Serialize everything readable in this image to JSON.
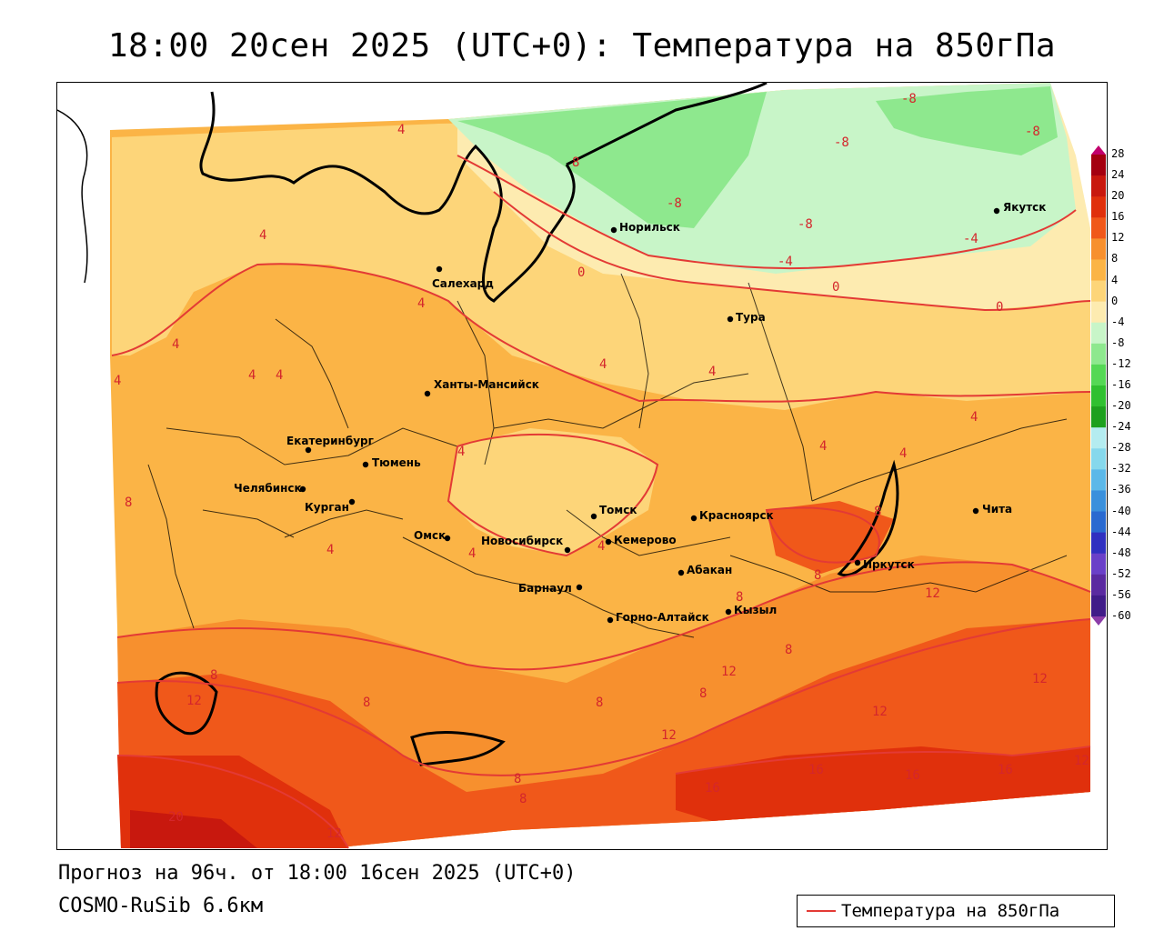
{
  "title": "18:00 20сен 2025 (UTC+0): Температура на 850гПа",
  "footer": {
    "forecast": "Прогноз на 96ч. от 18:00 16сен 2025 (UTC+0)",
    "model": "COSMO-RuSib 6.6км"
  },
  "legend": {
    "label": "Температура на 850гПа",
    "line_color": "#e33a35"
  },
  "colorbar": {
    "ticks": [
      "28",
      "24",
      "20",
      "16",
      "12",
      "8",
      "4",
      "0",
      "-4",
      "-8",
      "-12",
      "-16",
      "-20",
      "-24",
      "-28",
      "-32",
      "-36",
      "-40",
      "-44",
      "-48",
      "-52",
      "-56",
      "-60"
    ],
    "colors": [
      "#c2006d",
      "#a40010",
      "#c8180e",
      "#e0300c",
      "#f0581a",
      "#f7902e",
      "#fbb446",
      "#fdd579",
      "#fdebb0",
      "#c8f5c8",
      "#8ee88e",
      "#55d855",
      "#30c030",
      "#1ea01e",
      "#b4ecf0",
      "#86d8ec",
      "#5cb8e8",
      "#3a90dc",
      "#2a6ad0",
      "#3030c0",
      "#6a40c8",
      "#5a2aa0",
      "#401c88",
      "#8c3ca8"
    ]
  },
  "cities": [
    {
      "name": "Норильск"
    },
    {
      "name": "Якутск"
    },
    {
      "name": "Салехард"
    },
    {
      "name": "Тура"
    },
    {
      "name": "Ханты-Мансийск"
    },
    {
      "name": "Екатеринбург"
    },
    {
      "name": "Тюмень"
    },
    {
      "name": "Челябинск"
    },
    {
      "name": "Курган"
    },
    {
      "name": "Омск"
    },
    {
      "name": "Новосибирск"
    },
    {
      "name": "Томск"
    },
    {
      "name": "Кемерово"
    },
    {
      "name": "Красноярск"
    },
    {
      "name": "Чита"
    },
    {
      "name": "Иркутск"
    },
    {
      "name": "Абакан"
    },
    {
      "name": "Кызыл"
    },
    {
      "name": "Барнаул"
    },
    {
      "name": "Горно-Алтайск"
    }
  ],
  "contour_labels": [
    "-8",
    "-8",
    "-8",
    "-8",
    "-8",
    "-4",
    "-4",
    "0",
    "0",
    "0",
    "8",
    "4",
    "4",
    "4",
    "4",
    "4",
    "4",
    "4",
    "4",
    "4",
    "4",
    "4",
    "4",
    "4",
    "8",
    "8",
    "8",
    "8",
    "12",
    "12",
    "12",
    "12",
    "12",
    "8",
    "8",
    "12",
    "12",
    "16",
    "16",
    "16",
    "16",
    "20",
    "12",
    "8",
    "8",
    "8",
    "4",
    "4",
    "4",
    "8",
    "8"
  ]
}
